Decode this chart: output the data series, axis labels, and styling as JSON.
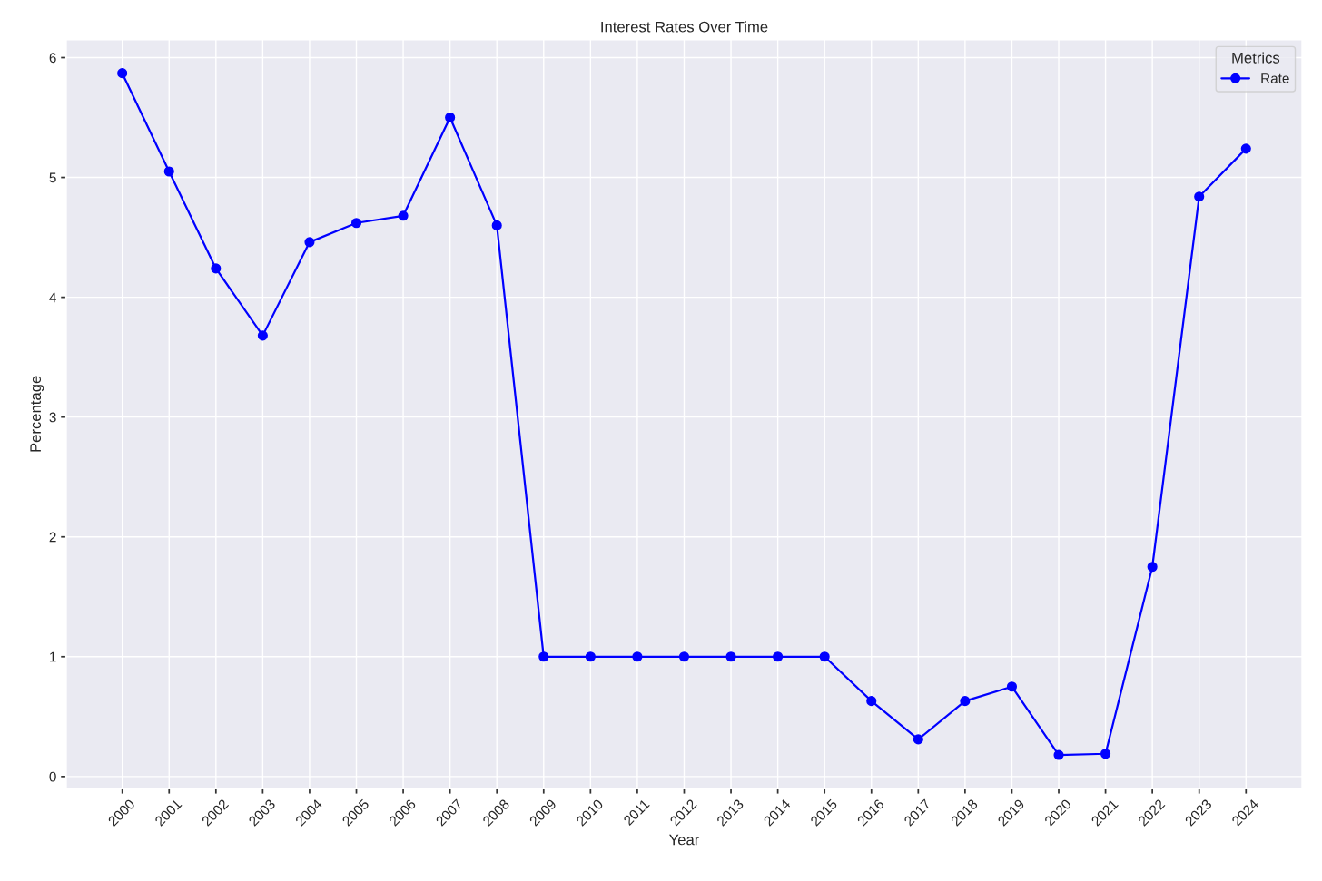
{
  "chart_data": {
    "type": "line",
    "title": "Interest Rates Over Time",
    "xlabel": "Year",
    "ylabel": "Percentage",
    "legend_title": "Metrics",
    "categories": [
      "2000",
      "2001",
      "2002",
      "2003",
      "2004",
      "2005",
      "2006",
      "2007",
      "2008",
      "2009",
      "2010",
      "2011",
      "2012",
      "2013",
      "2014",
      "2015",
      "2016",
      "2017",
      "2018",
      "2019",
      "2020",
      "2021",
      "2022",
      "2023",
      "2024"
    ],
    "series": [
      {
        "name": "Rate",
        "color": "#0000ff",
        "values": [
          5.87,
          5.05,
          4.24,
          3.68,
          4.46,
          4.62,
          4.68,
          5.5,
          4.6,
          1.0,
          1.0,
          1.0,
          1.0,
          1.0,
          1.0,
          1.0,
          0.63,
          0.31,
          0.63,
          0.75,
          0.18,
          0.19,
          1.75,
          4.84,
          5.24
        ]
      }
    ],
    "ylim": [
      -0.1,
      6.15
    ],
    "yticks": [
      0,
      1,
      2,
      3,
      4,
      5,
      6
    ],
    "grid": true,
    "legend": "top right",
    "marker": "circle",
    "line_style": "solid"
  }
}
